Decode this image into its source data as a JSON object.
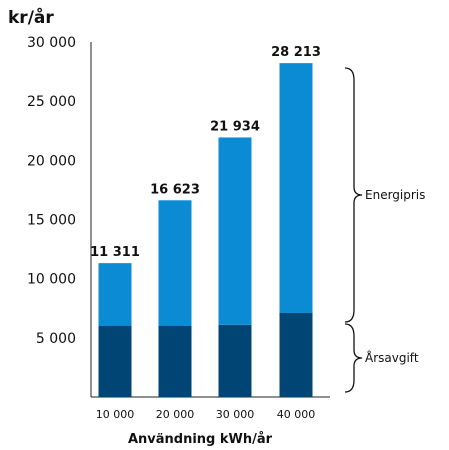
{
  "chart_data": {
    "type": "bar",
    "stacked": true,
    "ylabel": "kr/år",
    "xlabel": "Användning kWh/år",
    "ylim": [
      0,
      30000
    ],
    "yticks": [
      "5 000",
      "10 000",
      "15 000",
      "20 000",
      "25 000",
      "30 000"
    ],
    "yticks_values": [
      5000,
      10000,
      15000,
      20000,
      25000,
      30000
    ],
    "categories": [
      "10 000",
      "20 000",
      "30 000",
      "40 000"
    ],
    "series": [
      {
        "name": "Årsavgift",
        "values": [
          6000,
          6000,
          6100,
          7100
        ],
        "color": "#004574"
      },
      {
        "name": "Energipris",
        "values": [
          5311,
          10623,
          15834,
          21113
        ],
        "color": "#0a8bd3"
      }
    ],
    "totals": [
      "11 311",
      "16 623",
      "21 934",
      "28 213"
    ],
    "totals_values": [
      11311,
      16623,
      21934,
      28213
    ],
    "brace_labels": [
      "Energipris",
      "Årsavgift"
    ],
    "grid": false
  }
}
